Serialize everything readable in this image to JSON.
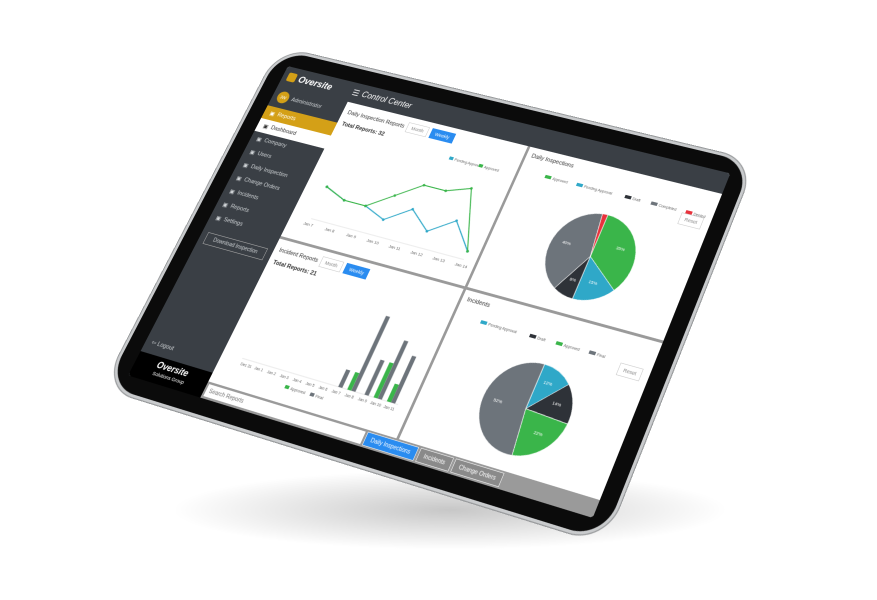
{
  "colors": {
    "accent": "#d4a017",
    "primary": "#2a8cf0",
    "approved": "#3ab54a",
    "pending": "#2fa8c8",
    "draft": "#2e3238",
    "completed": "#6d747b",
    "denied": "#e8323c"
  },
  "header": {
    "logo": "Oversite",
    "title": "Control Center",
    "menu_icon": "hamburger-icon"
  },
  "sidebar": {
    "user": {
      "initials": "JW",
      "name": "Administrator"
    },
    "items": [
      {
        "label": "Reports",
        "icon": "report-icon"
      },
      {
        "label": "Dashboard",
        "icon": "dashboard-icon"
      },
      {
        "label": "Company",
        "icon": "building-icon"
      },
      {
        "label": "Users",
        "icon": "users-icon"
      },
      {
        "label": "Daily Inspection",
        "icon": "clipboard-icon"
      },
      {
        "label": "Change Orders",
        "icon": "document-icon"
      },
      {
        "label": "Incidents",
        "icon": "warning-icon"
      },
      {
        "label": "Reports",
        "icon": "chart-icon"
      },
      {
        "label": "Settings",
        "icon": "gear-icon"
      }
    ],
    "download_label": "Download Inspection",
    "logout_label": "Logout",
    "brand": {
      "name": "Oversite",
      "tagline": "Solutions Group"
    }
  },
  "panels": {
    "daily_reports": {
      "label": "Daily Inspection Reports",
      "toggle": [
        "Month",
        "Weekly"
      ],
      "total": "Total Reports: 32"
    },
    "daily_inspections": {
      "title": "Daily Inspections",
      "reset": "Reset"
    },
    "incident_reports": {
      "label": "Incident Reports",
      "toggle": [
        "Month",
        "Weekly"
      ],
      "total": "Total Reports: 21"
    },
    "incidents": {
      "title": "Incidents",
      "reset": "Reset"
    }
  },
  "footer": {
    "search_placeholder": "Search Reports",
    "buttons": [
      "Daily Inspections",
      "Incidents",
      "Change Orders"
    ]
  },
  "chart_data": [
    {
      "type": "line",
      "categories": [
        "Jan 7",
        "Jan 8",
        "Jan 9",
        "Jan 10",
        "Jan 11",
        "Jan 12",
        "Jan 13",
        "Jan 14"
      ],
      "series": [
        {
          "name": "Pending Approval",
          "color": "#2fa8c8",
          "values": [
            4,
            3,
            3,
            2,
            4,
            2,
            4,
            1
          ]
        },
        {
          "name": "Approved",
          "color": "#3ab54a",
          "values": [
            4,
            3,
            3,
            5,
            7,
            7,
            8,
            1
          ]
        }
      ],
      "ylim": [
        0,
        10
      ]
    },
    {
      "type": "pie",
      "labels": [
        "Approved",
        "Pending Approval",
        "Draft",
        "Completed",
        "Denied"
      ],
      "values": [
        35,
        15,
        8,
        40,
        2
      ],
      "colors": [
        "#3ab54a",
        "#2fa8c8",
        "#2e3238",
        "#6d747b",
        "#e8323c"
      ]
    },
    {
      "type": "bar",
      "categories": [
        "Dec 31",
        "Jan 1",
        "Jan 2",
        "Jan 3",
        "Jan 4",
        "Jan 5",
        "Jan 6",
        "Jan 7",
        "Jan 8",
        "Jan 9",
        "Jan 10",
        "Jan 11"
      ],
      "series": [
        {
          "name": "Approved",
          "color": "#3ab54a",
          "values": [
            0,
            0,
            0,
            0,
            0,
            0,
            0,
            0,
            3,
            0,
            6,
            3
          ]
        },
        {
          "name": "Final",
          "color": "#6d747b",
          "values": [
            0,
            0,
            0,
            0,
            0,
            0,
            0,
            3,
            13,
            6,
            10,
            8
          ]
        }
      ],
      "ylim": [
        0,
        15
      ]
    },
    {
      "type": "pie",
      "labels": [
        "Pending Approval",
        "Draft",
        "Approved",
        "Final"
      ],
      "values": [
        12,
        14,
        22,
        52
      ],
      "colors": [
        "#2fa8c8",
        "#2e3238",
        "#3ab54a",
        "#6d747b"
      ]
    }
  ]
}
